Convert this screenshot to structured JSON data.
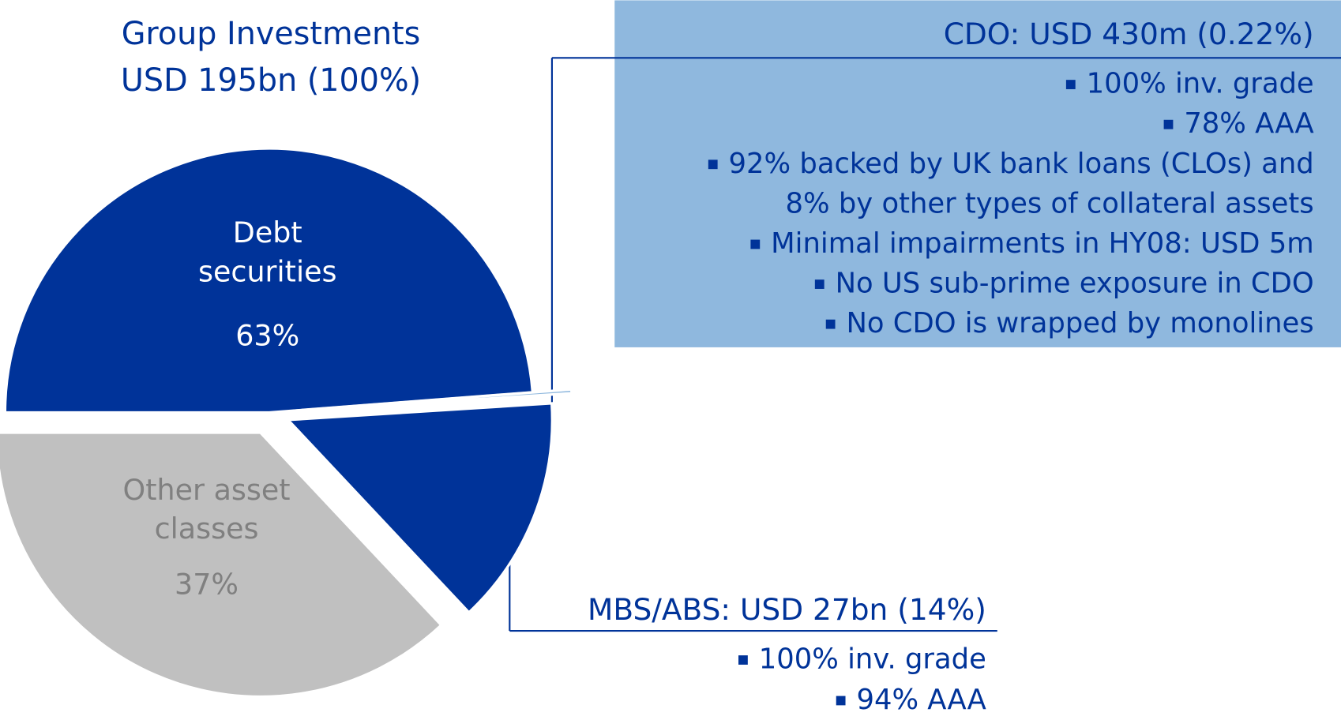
{
  "chart_data": {
    "type": "pie",
    "title": "Group Investments",
    "subtitle": "USD 195bn (100%)",
    "categories": [
      "Debt securities",
      "Other asset classes"
    ],
    "values": [
      63,
      37
    ],
    "value_labels": [
      "63%",
      "37%"
    ],
    "colors": [
      "#003399",
      "#c0c0c0"
    ],
    "breakdown": [
      {
        "title": "MBS/ABS: USD 27bn (14%)",
        "value": 14,
        "color": "#003399",
        "bullets": [
          [
            "100% inv. grade"
          ],
          [
            "94% AAA"
          ]
        ]
      },
      {
        "title": "CDO: USD 430m (0.22%)",
        "value": 0.22,
        "color": "#8fb8de",
        "bullets": [
          [
            "100% inv. grade"
          ],
          [
            "78% AAA"
          ],
          [
            "92% backed by UK bank loans (CLOs) and",
            "8% by other types of collateral assets"
          ],
          [
            "Minimal impairments in HY08: USD 5m"
          ],
          [
            "No US sub-prime exposure in CDO"
          ],
          [
            "No CDO is wrapped by monolines"
          ]
        ]
      }
    ]
  }
}
